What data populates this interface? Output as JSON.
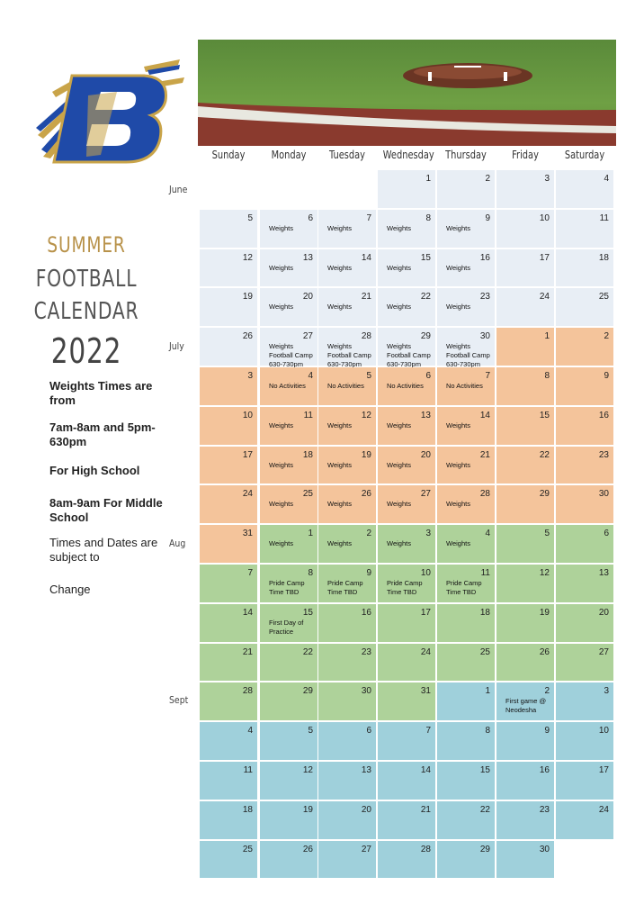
{
  "title": {
    "line1": "SUMMER",
    "line2": "FOOTBALL",
    "line3": "CALENDAR",
    "year": "2022"
  },
  "notes": [
    {
      "text": "Weights Times are from",
      "bold": true
    },
    {
      "text": "7am-8am and 5pm-630pm",
      "bold": true
    },
    {
      "text": "For High School",
      "bold": true
    },
    {
      "text": "8am-9am For Middle School",
      "bold": true
    },
    {
      "text": "Times and Dates are subject to",
      "bold": false
    },
    {
      "text": "Change",
      "bold": false
    }
  ],
  "days": [
    "Sunday",
    "Monday",
    "Tuesday",
    "Wednesday",
    "Thursday",
    "Friday",
    "Saturday"
  ],
  "months": [
    "June",
    "July",
    "Aug",
    "Sept"
  ],
  "colors": {
    "june": "#e8eef5",
    "july": "#f4c49b",
    "aug": "#aed29a",
    "sept": "#9fd0db",
    "logo_blue": "#1f4aa8",
    "logo_gold": "#c9a449"
  },
  "weeks": [
    [
      null,
      null,
      null,
      {
        "d": "1",
        "m": "june"
      },
      {
        "d": "2",
        "m": "june"
      },
      {
        "d": "3",
        "m": "june"
      },
      {
        "d": "4",
        "m": "june"
      }
    ],
    [
      {
        "d": "5",
        "m": "june"
      },
      {
        "d": "6",
        "m": "june",
        "e": "Weights"
      },
      {
        "d": "7",
        "m": "june",
        "e": "Weights"
      },
      {
        "d": "8",
        "m": "june",
        "e": "Weights"
      },
      {
        "d": "9",
        "m": "june",
        "e": "Weights"
      },
      {
        "d": "10",
        "m": "june"
      },
      {
        "d": "11",
        "m": "june"
      }
    ],
    [
      {
        "d": "12",
        "m": "june"
      },
      {
        "d": "13",
        "m": "june",
        "e": "Weights"
      },
      {
        "d": "14",
        "m": "june",
        "e": "Weights"
      },
      {
        "d": "15",
        "m": "june",
        "e": "Weights"
      },
      {
        "d": "16",
        "m": "june",
        "e": "Weights"
      },
      {
        "d": "17",
        "m": "june"
      },
      {
        "d": "18",
        "m": "june"
      }
    ],
    [
      {
        "d": "19",
        "m": "june"
      },
      {
        "d": "20",
        "m": "june",
        "e": "Weights"
      },
      {
        "d": "21",
        "m": "june",
        "e": "Weights"
      },
      {
        "d": "22",
        "m": "june",
        "e": "Weights"
      },
      {
        "d": "23",
        "m": "june",
        "e": "Weights"
      },
      {
        "d": "24",
        "m": "june"
      },
      {
        "d": "25",
        "m": "june"
      }
    ],
    [
      {
        "d": "26",
        "m": "june"
      },
      {
        "d": "27",
        "m": "june",
        "e": "Weights\nFootball Camp\n630-730pm"
      },
      {
        "d": "28",
        "m": "june",
        "e": "Weights\nFootball Camp\n630-730pm"
      },
      {
        "d": "29",
        "m": "june",
        "e": "Weights\nFootball Camp\n630-730pm"
      },
      {
        "d": "30",
        "m": "june",
        "e": "Weights\nFootball Camp\n630-730pm"
      },
      {
        "d": "1",
        "m": "july"
      },
      {
        "d": "2",
        "m": "july"
      }
    ],
    [
      {
        "d": "3",
        "m": "july"
      },
      {
        "d": "4",
        "m": "july",
        "e": "No Activities"
      },
      {
        "d": "5",
        "m": "july",
        "e": "No Activities"
      },
      {
        "d": "6",
        "m": "july",
        "e": "No Activities"
      },
      {
        "d": "7",
        "m": "july",
        "e": "No Activities"
      },
      {
        "d": "8",
        "m": "july"
      },
      {
        "d": "9",
        "m": "july"
      }
    ],
    [
      {
        "d": "10",
        "m": "july"
      },
      {
        "d": "11",
        "m": "july",
        "e": "Weights"
      },
      {
        "d": "12",
        "m": "july",
        "e": "Weights"
      },
      {
        "d": "13",
        "m": "july",
        "e": "Weights"
      },
      {
        "d": "14",
        "m": "july",
        "e": "Weights"
      },
      {
        "d": "15",
        "m": "july"
      },
      {
        "d": "16",
        "m": "july"
      }
    ],
    [
      {
        "d": "17",
        "m": "july"
      },
      {
        "d": "18",
        "m": "july",
        "e": "Weights"
      },
      {
        "d": "19",
        "m": "july",
        "e": "Weights"
      },
      {
        "d": "20",
        "m": "july",
        "e": "Weights"
      },
      {
        "d": "21",
        "m": "july",
        "e": "Weights"
      },
      {
        "d": "22",
        "m": "july"
      },
      {
        "d": "23",
        "m": "july"
      }
    ],
    [
      {
        "d": "24",
        "m": "july"
      },
      {
        "d": "25",
        "m": "july",
        "e": "Weights"
      },
      {
        "d": "26",
        "m": "july",
        "e": "Weights"
      },
      {
        "d": "27",
        "m": "july",
        "e": "Weights"
      },
      {
        "d": "28",
        "m": "july",
        "e": "Weights"
      },
      {
        "d": "29",
        "m": "july"
      },
      {
        "d": "30",
        "m": "july"
      }
    ],
    [
      {
        "d": "31",
        "m": "july"
      },
      {
        "d": "1",
        "m": "aug",
        "e": "Weights"
      },
      {
        "d": "2",
        "m": "aug",
        "e": "Weights"
      },
      {
        "d": "3",
        "m": "aug",
        "e": "Weights"
      },
      {
        "d": "4",
        "m": "aug",
        "e": "Weights"
      },
      {
        "d": "5",
        "m": "aug"
      },
      {
        "d": "6",
        "m": "aug"
      }
    ],
    [
      {
        "d": "7",
        "m": "aug"
      },
      {
        "d": "8",
        "m": "aug",
        "e": "Pride Camp\nTime TBD"
      },
      {
        "d": "9",
        "m": "aug",
        "e": "Pride Camp\nTime TBD"
      },
      {
        "d": "10",
        "m": "aug",
        "e": "Pride Camp\nTime TBD"
      },
      {
        "d": "11",
        "m": "aug",
        "e": "Pride Camp\nTime TBD"
      },
      {
        "d": "12",
        "m": "aug"
      },
      {
        "d": "13",
        "m": "aug"
      }
    ],
    [
      {
        "d": "14",
        "m": "aug"
      },
      {
        "d": "15",
        "m": "aug",
        "e": "First Day of\nPractice"
      },
      {
        "d": "16",
        "m": "aug"
      },
      {
        "d": "17",
        "m": "aug"
      },
      {
        "d": "18",
        "m": "aug"
      },
      {
        "d": "19",
        "m": "aug"
      },
      {
        "d": "20",
        "m": "aug"
      }
    ],
    [
      {
        "d": "21",
        "m": "aug"
      },
      {
        "d": "22",
        "m": "aug"
      },
      {
        "d": "23",
        "m": "aug"
      },
      {
        "d": "24",
        "m": "aug"
      },
      {
        "d": "25",
        "m": "aug"
      },
      {
        "d": "26",
        "m": "aug"
      },
      {
        "d": "27",
        "m": "aug"
      }
    ],
    [
      {
        "d": "28",
        "m": "aug"
      },
      {
        "d": "29",
        "m": "aug"
      },
      {
        "d": "30",
        "m": "aug"
      },
      {
        "d": "31",
        "m": "aug"
      },
      {
        "d": "1",
        "m": "sept"
      },
      {
        "d": "2",
        "m": "sept",
        "e": "First game @\nNeodesha"
      },
      {
        "d": "3",
        "m": "sept"
      }
    ],
    [
      {
        "d": "4",
        "m": "sept"
      },
      {
        "d": "5",
        "m": "sept"
      },
      {
        "d": "6",
        "m": "sept"
      },
      {
        "d": "7",
        "m": "sept"
      },
      {
        "d": "8",
        "m": "sept"
      },
      {
        "d": "9",
        "m": "sept"
      },
      {
        "d": "10",
        "m": "sept"
      }
    ],
    [
      {
        "d": "11",
        "m": "sept"
      },
      {
        "d": "12",
        "m": "sept"
      },
      {
        "d": "13",
        "m": "sept"
      },
      {
        "d": "14",
        "m": "sept"
      },
      {
        "d": "15",
        "m": "sept"
      },
      {
        "d": "16",
        "m": "sept"
      },
      {
        "d": "17",
        "m": "sept"
      }
    ],
    [
      {
        "d": "18",
        "m": "sept"
      },
      {
        "d": "19",
        "m": "sept"
      },
      {
        "d": "20",
        "m": "sept"
      },
      {
        "d": "21",
        "m": "sept"
      },
      {
        "d": "22",
        "m": "sept"
      },
      {
        "d": "23",
        "m": "sept"
      },
      {
        "d": "24",
        "m": "sept"
      }
    ],
    [
      {
        "d": "25",
        "m": "sept"
      },
      {
        "d": "26",
        "m": "sept"
      },
      {
        "d": "27",
        "m": "sept"
      },
      {
        "d": "28",
        "m": "sept"
      },
      {
        "d": "29",
        "m": "sept"
      },
      {
        "d": "30",
        "m": "sept"
      },
      null
    ]
  ]
}
